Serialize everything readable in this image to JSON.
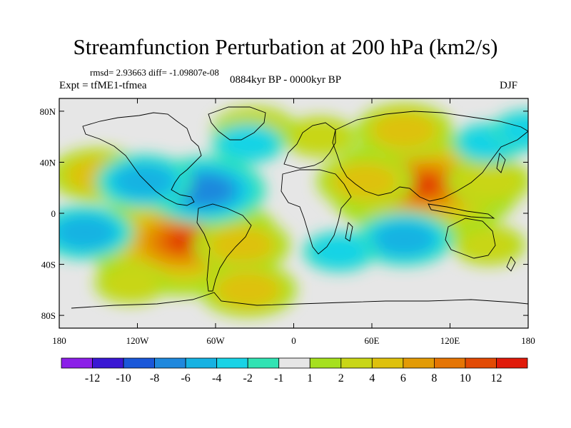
{
  "title": "Streamfunction Perturbation at 200 hPa (km2/s)",
  "stats": "rmsd= 2.93663 diff= -1.09807e-08",
  "experiment": "Expt = tfME1-tfmea",
  "period": "0884kyr BP - 0000kyr BP",
  "season": "DJF",
  "map": {
    "lon_range": [
      -180,
      180
    ],
    "lat_range": [
      -90,
      90
    ],
    "x_ticks": [
      {
        "value": -180,
        "label": "180"
      },
      {
        "value": -120,
        "label": "120W"
      },
      {
        "value": -60,
        "label": "60W"
      },
      {
        "value": 0,
        "label": "0"
      },
      {
        "value": 60,
        "label": "60E"
      },
      {
        "value": 120,
        "label": "120E"
      },
      {
        "value": 180,
        "label": "180"
      }
    ],
    "y_ticks": [
      {
        "value": 80,
        "label": "80N"
      },
      {
        "value": 40,
        "label": "40N"
      },
      {
        "value": 0,
        "label": "0"
      },
      {
        "value": -40,
        "label": "40S"
      },
      {
        "value": -80,
        "label": "80S"
      }
    ],
    "background_color": "#e6e6e6",
    "anomalies": [
      {
        "lon": 100,
        "lat": 22,
        "value": 12
      },
      {
        "lon": 55,
        "lat": 25,
        "value": 4
      },
      {
        "lon": 150,
        "lat": 25,
        "value": 3
      },
      {
        "lon": -85,
        "lat": -22,
        "value": 12
      },
      {
        "lon": -40,
        "lat": -25,
        "value": 4
      },
      {
        "lon": -150,
        "lat": 30,
        "value": 4
      },
      {
        "lon": -30,
        "lat": 65,
        "value": 3
      },
      {
        "lon": 20,
        "lat": 60,
        "value": 2
      },
      {
        "lon": 85,
        "lat": 65,
        "value": 4
      },
      {
        "lon": -35,
        "lat": -60,
        "value": 4
      },
      {
        "lon": 150,
        "lat": -25,
        "value": 2
      },
      {
        "lon": -125,
        "lat": -55,
        "value": 2
      },
      {
        "lon": -68,
        "lat": 18,
        "value": -6
      },
      {
        "lon": -115,
        "lat": 25,
        "value": -4
      },
      {
        "lon": 85,
        "lat": -20,
        "value": -4
      },
      {
        "lon": 35,
        "lat": -30,
        "value": -2
      },
      {
        "lon": -160,
        "lat": -15,
        "value": -4
      },
      {
        "lon": -35,
        "lat": 55,
        "value": -2
      },
      {
        "lon": 150,
        "lat": 55,
        "value": -2
      },
      {
        "lon": 180,
        "lat": 65,
        "value": -2
      }
    ]
  },
  "colorbar": {
    "colors": [
      "#8b1fe8",
      "#3a17d4",
      "#1a57d9",
      "#1f88dd",
      "#16b2e2",
      "#19d3e6",
      "#31e3b3",
      "#e6e6e6",
      "#a6e01f",
      "#c9d617",
      "#dec10d",
      "#e39b06",
      "#e57504",
      "#e24a04",
      "#e01a0a"
    ],
    "labels": [
      "-12",
      "-10",
      "-8",
      "-6",
      "-4",
      "-2",
      "-1",
      "1",
      "2",
      "4",
      "6",
      "8",
      "10",
      "12"
    ]
  }
}
